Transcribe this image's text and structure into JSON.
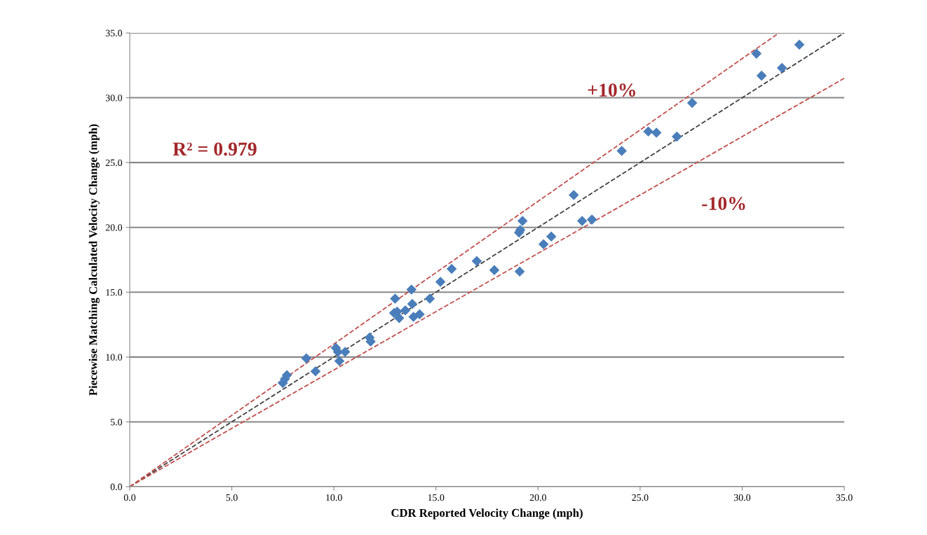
{
  "chart_data": {
    "type": "scatter",
    "xlabel": "CDR Reported Velocity Change (mph)",
    "ylabel": "Piecewise Matching Calculated Velocity Change (mph)",
    "series": [
      {
        "color": "#4a7ebb",
        "marker": "diamond",
        "x": [
          30.7,
          32.8,
          30.95,
          31.95,
          27.55,
          25.4,
          25.8,
          26.8,
          24.1,
          21.75,
          19.24,
          19.13,
          19.07,
          22.16,
          22.64,
          20.65,
          20.27,
          17.0,
          15.77,
          17.86,
          19.1,
          15.22,
          13.8,
          14.7,
          13.0,
          13.84,
          13.1,
          12.95,
          13.2,
          13.5,
          13.9,
          14.2,
          11.75,
          11.8,
          10.1,
          10.2,
          10.55,
          10.27,
          8.65,
          9.1,
          7.7,
          7.6,
          7.5
        ],
        "values": [
          33.4,
          34.1,
          31.7,
          32.3,
          29.6,
          27.4,
          27.3,
          27.0,
          25.9,
          22.5,
          20.5,
          19.8,
          19.6,
          20.5,
          20.6,
          19.3,
          18.7,
          17.4,
          16.8,
          16.7,
          16.6,
          15.8,
          15.2,
          14.5,
          14.5,
          14.1,
          13.5,
          13.4,
          13.0,
          13.6,
          13.1,
          13.3,
          11.5,
          11.2,
          10.7,
          10.4,
          10.4,
          9.7,
          9.9,
          8.9,
          8.6,
          8.3,
          8.0
        ]
      },
      {
        "type": "line",
        "color": "#404040",
        "line_style": "dashed",
        "x": [
          0,
          35
        ],
        "values": [
          0,
          35
        ]
      },
      {
        "type": "line",
        "color": "#c0504d",
        "line_style": "dashed",
        "x": [
          0,
          31.8
        ],
        "values": [
          0,
          35
        ]
      },
      {
        "type": "line",
        "color": "#c0504d",
        "line_style": "dashed",
        "x": [
          0,
          35
        ],
        "values": [
          0,
          31.5
        ]
      }
    ],
    "xlim": [
      0,
      35
    ],
    "ylim": [
      0,
      35
    ],
    "xticks": [
      {
        "value": 0,
        "label": "0.0"
      },
      {
        "value": 5,
        "label": "5.0"
      },
      {
        "value": 10,
        "label": "10.0"
      },
      {
        "value": 15,
        "label": "15.0"
      },
      {
        "value": 20,
        "label": "20.0"
      },
      {
        "value": 25,
        "label": "25.0"
      },
      {
        "value": 30,
        "label": "30.0"
      },
      {
        "value": 35,
        "label": "35.0"
      }
    ],
    "yticks": [
      {
        "value": 0,
        "label": "0.0"
      },
      {
        "value": 5,
        "label": "5.0"
      },
      {
        "value": 10,
        "label": "10.0"
      },
      {
        "value": 15,
        "label": "15.0"
      },
      {
        "value": 20,
        "label": "20.0"
      },
      {
        "value": 25,
        "label": "25.0"
      },
      {
        "value": 30,
        "label": "30.0"
      },
      {
        "value": 35,
        "label": "35.0"
      }
    ],
    "grid": "y",
    "legend": false,
    "annotations": [
      "R² = 0.979",
      "+10%",
      "-10%"
    ]
  }
}
